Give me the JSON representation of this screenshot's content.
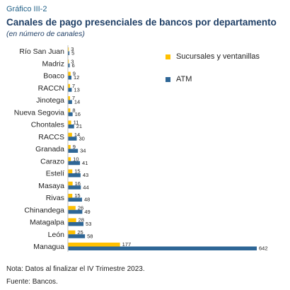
{
  "header": {
    "figure_label": "Gráfico III-2",
    "title": "Canales de pago presenciales de bancos por departamento",
    "subtitle": "(en número de canales)"
  },
  "footer": {
    "note": "Nota: Datos al finalizar el IV Trimestre 2023.",
    "source": "Fuente: Bancos."
  },
  "chart_data": {
    "type": "bar",
    "orientation": "horizontal",
    "categories": [
      "Río San Juan",
      "Madriz",
      "Boaco",
      "RACCN",
      "Jinotega",
      "Nueva Segovia",
      "Chontales",
      "RACCS",
      "Granada",
      "Carazo",
      "Estelí",
      "Masaya",
      "Rivas",
      "Chinandega",
      "Matagalpa",
      "León",
      "Managua"
    ],
    "series": [
      {
        "name": "Sucursales y ventanillas",
        "color": "#ffc000",
        "values": [
          3,
          3,
          9,
          7,
          7,
          8,
          11,
          14,
          9,
          10,
          15,
          16,
          15,
          26,
          28,
          25,
          177
        ]
      },
      {
        "name": "ATM",
        "color": "#2e6696",
        "values": [
          5,
          6,
          12,
          13,
          14,
          16,
          21,
          30,
          34,
          41,
          43,
          44,
          48,
          49,
          53,
          58,
          642
        ]
      }
    ],
    "xlim": [
      0,
      642
    ],
    "grid": false,
    "legend": "top-right"
  }
}
